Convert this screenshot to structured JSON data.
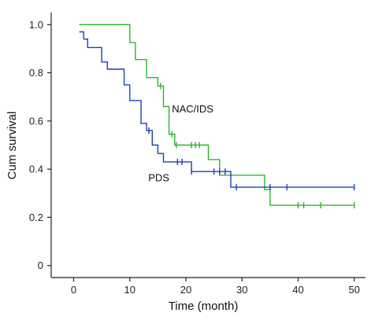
{
  "chart_data": {
    "type": "line",
    "step": true,
    "xlabel": "Time (month)",
    "ylabel": "Cum survival",
    "xlim": [
      -4,
      52
    ],
    "ylim": [
      -0.05,
      1.05
    ],
    "x_ticks": [
      "0",
      "10",
      "20",
      "30",
      "40",
      "50"
    ],
    "y_ticks": [
      "0",
      "0.2",
      "0.4",
      "0.6",
      "0.8",
      "1.0"
    ],
    "grid": false,
    "series": [
      {
        "name": "NAC/IDS",
        "color": "#2db52d",
        "points": [
          [
            1,
            1.0
          ],
          [
            10,
            1.0
          ],
          [
            10,
            0.925
          ],
          [
            11,
            0.925
          ],
          [
            11,
            0.855
          ],
          [
            13,
            0.855
          ],
          [
            13,
            0.78
          ],
          [
            15,
            0.78
          ],
          [
            15,
            0.745
          ],
          [
            16,
            0.745
          ],
          [
            16,
            0.66
          ],
          [
            17,
            0.66
          ],
          [
            17,
            0.545
          ],
          [
            18,
            0.545
          ],
          [
            18,
            0.5
          ],
          [
            24,
            0.5
          ],
          [
            24,
            0.44
          ],
          [
            26,
            0.44
          ],
          [
            26,
            0.375
          ],
          [
            34,
            0.375
          ],
          [
            34,
            0.315
          ],
          [
            35,
            0.315
          ],
          [
            35,
            0.25
          ],
          [
            50,
            0.25
          ]
        ],
        "censored": [
          [
            15.5,
            0.745
          ],
          [
            17.5,
            0.545
          ],
          [
            18.3,
            0.5
          ],
          [
            21,
            0.5
          ],
          [
            21.7,
            0.5
          ],
          [
            22.4,
            0.5
          ],
          [
            40,
            0.25
          ],
          [
            41,
            0.25
          ],
          [
            44,
            0.25
          ],
          [
            50,
            0.25
          ]
        ]
      },
      {
        "name": "PDS",
        "color": "#1f3fbf",
        "points": [
          [
            1,
            0.97
          ],
          [
            1.8,
            0.97
          ],
          [
            1.8,
            0.94
          ],
          [
            2.5,
            0.94
          ],
          [
            2.5,
            0.905
          ],
          [
            5,
            0.905
          ],
          [
            5,
            0.845
          ],
          [
            6,
            0.845
          ],
          [
            6,
            0.815
          ],
          [
            9,
            0.815
          ],
          [
            9,
            0.75
          ],
          [
            10,
            0.75
          ],
          [
            10,
            0.685
          ],
          [
            12,
            0.685
          ],
          [
            12,
            0.59
          ],
          [
            13,
            0.59
          ],
          [
            13,
            0.56
          ],
          [
            14,
            0.56
          ],
          [
            14,
            0.5
          ],
          [
            15,
            0.5
          ],
          [
            15,
            0.465
          ],
          [
            16,
            0.465
          ],
          [
            16,
            0.43
          ],
          [
            21,
            0.43
          ],
          [
            21,
            0.39
          ],
          [
            28,
            0.39
          ],
          [
            28,
            0.325
          ],
          [
            50,
            0.325
          ]
        ],
        "censored": [
          [
            13.4,
            0.56
          ],
          [
            18.5,
            0.43
          ],
          [
            19.3,
            0.43
          ],
          [
            21,
            0.39
          ],
          [
            25,
            0.39
          ],
          [
            26,
            0.39
          ],
          [
            27,
            0.39
          ],
          [
            29,
            0.325
          ],
          [
            35,
            0.325
          ],
          [
            38,
            0.325
          ],
          [
            50,
            0.325
          ]
        ]
      }
    ],
    "annotations": [
      {
        "text": "NAC/IDS",
        "x": 17.5,
        "y": 0.635
      },
      {
        "text": "PDS",
        "x": 13.3,
        "y": 0.35
      }
    ]
  }
}
